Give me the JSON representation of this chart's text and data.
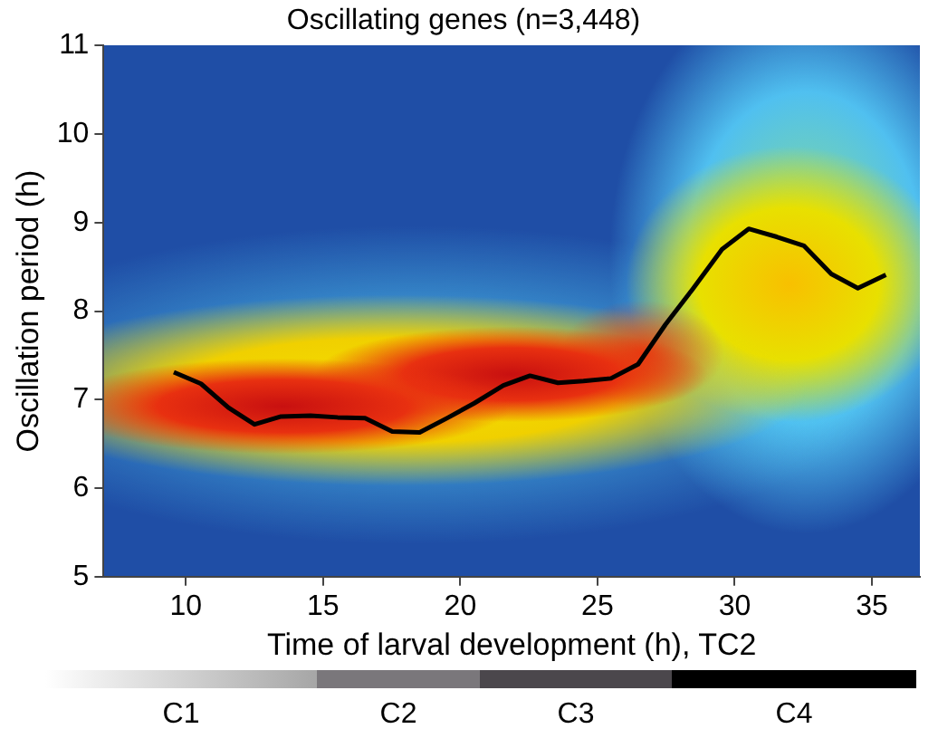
{
  "chart_data": {
    "type": "line",
    "title": "Oscillating genes (n=3,448)",
    "xlabel": "Time of larval development (h), TC2",
    "ylabel": "Oscillation period (h)",
    "x": [
      9.56,
      10.55,
      11.55,
      12.5,
      13.47,
      14.54,
      15.53,
      16.53,
      17.52,
      18.52,
      19.51,
      20.51,
      21.57,
      22.54,
      23.56,
      24.49,
      25.49,
      26.48,
      27.48,
      28.47,
      29.54,
      30.51,
      31.53,
      32.52,
      33.52,
      34.49,
      35.51
    ],
    "values": [
      7.31,
      7.18,
      6.91,
      6.72,
      6.81,
      6.82,
      6.8,
      6.79,
      6.64,
      6.63,
      6.79,
      6.96,
      7.16,
      7.27,
      7.19,
      7.21,
      7.24,
      7.4,
      7.85,
      8.25,
      8.7,
      8.93,
      8.84,
      8.74,
      8.42,
      8.26,
      8.41
    ],
    "color": "#000000",
    "xlim": [
      7,
      36.75
    ],
    "xticks": [
      10,
      15,
      20,
      25,
      30,
      35
    ],
    "ylim": [
      5,
      11
    ],
    "yticks": [
      5,
      6,
      7,
      8,
      9,
      10,
      11
    ],
    "annotations": [
      "C1",
      "C2",
      "C3",
      "C4"
    ]
  }
}
